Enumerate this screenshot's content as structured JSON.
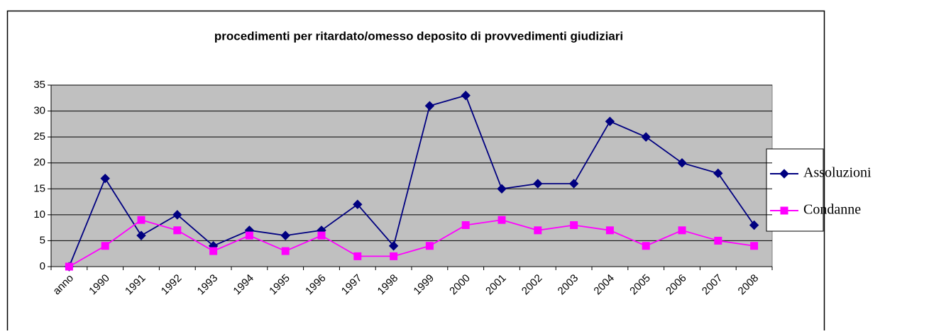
{
  "chart_data": {
    "type": "line",
    "title": "procedimenti per ritardato/omesso deposito di provvedimenti giudiziari",
    "categories": [
      "anno",
      "1990",
      "1991",
      "1992",
      "1993",
      "1994",
      "1995",
      "1996",
      "1997",
      "1998",
      "1999",
      "2000",
      "2001",
      "2002",
      "2003",
      "2004",
      "2005",
      "2006",
      "2007",
      "2008"
    ],
    "series": [
      {
        "name": "Assoluzioni",
        "color": "#000080",
        "marker": "diamond",
        "values": [
          0,
          17,
          6,
          10,
          4,
          7,
          6,
          7,
          12,
          4,
          31,
          33,
          15,
          16,
          16,
          28,
          25,
          20,
          18,
          8
        ]
      },
      {
        "name": "Condanne",
        "color": "#ff00ff",
        "marker": "square",
        "values": [
          0,
          4,
          9,
          7,
          3,
          6,
          3,
          6,
          2,
          2,
          4,
          8,
          9,
          7,
          8,
          7,
          4,
          7,
          5,
          4
        ]
      }
    ],
    "ylim": [
      0,
      35
    ],
    "yticks": [
      0,
      5,
      10,
      15,
      20,
      25,
      30,
      35
    ],
    "grid": true,
    "legend": "right"
  }
}
